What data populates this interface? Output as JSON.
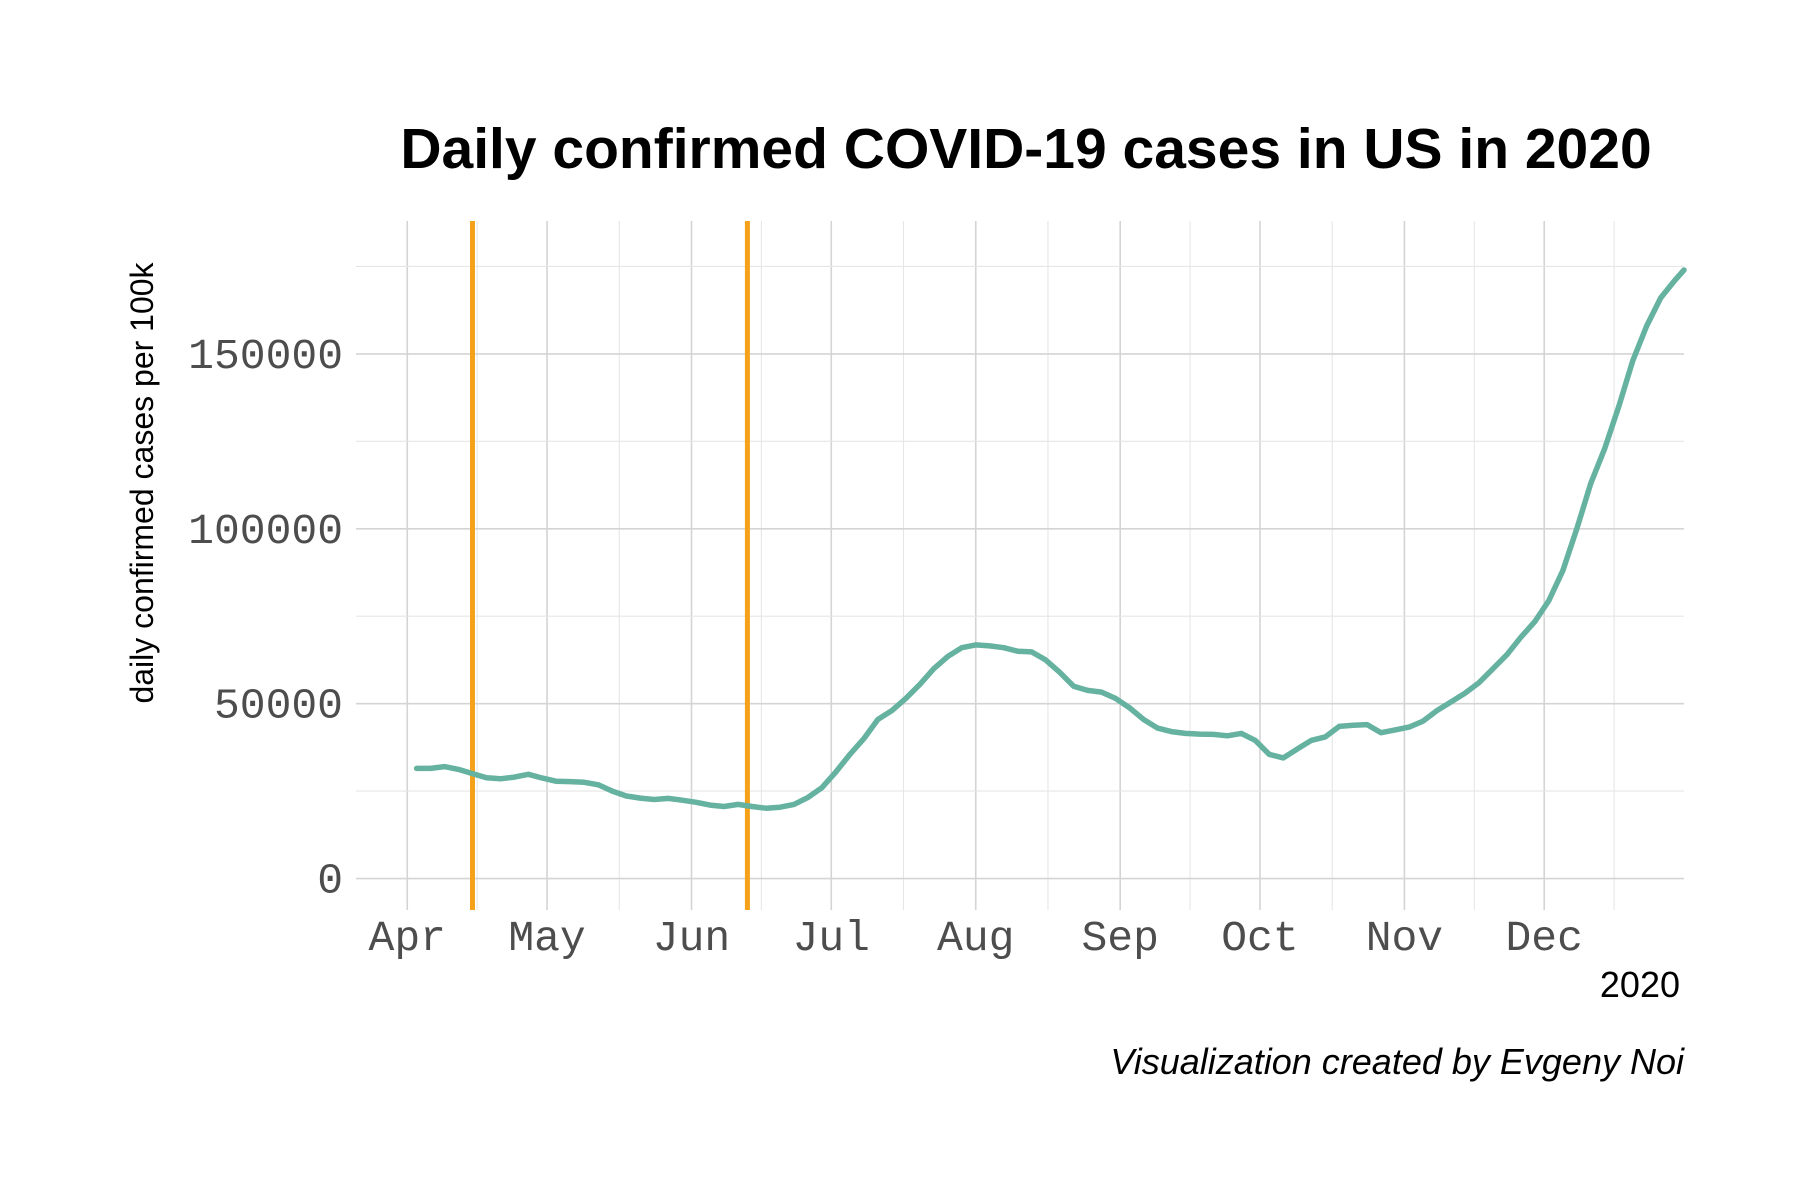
{
  "chart_data": {
    "type": "line",
    "title": "Daily confirmed COVID-19 cases in US in 2020",
    "ylabel": "daily confirmed cases per 100k",
    "xlabel": "2020",
    "caption": "Visualization created by Evgeny Noi",
    "x_ticks": [
      "Apr",
      "May",
      "Jun",
      "Jul",
      "Aug",
      "Sep",
      "Oct",
      "Nov",
      "Dec"
    ],
    "x_tick_dates": [
      "2020-04-01",
      "2020-05-01",
      "2020-06-01",
      "2020-07-01",
      "2020-08-01",
      "2020-09-01",
      "2020-10-01",
      "2020-11-01",
      "2020-12-01"
    ],
    "xlim": [
      "2020-03-21",
      "2020-12-31"
    ],
    "y_ticks": [
      0,
      50000,
      100000,
      150000
    ],
    "y_tick_labels": [
      "0",
      "50000",
      "100000",
      "150000"
    ],
    "ylim": [
      -9000,
      188000
    ],
    "grid": true,
    "series": [
      {
        "color": "#66b2a0",
        "points": [
          [
            "2020-04-03",
            31500
          ],
          [
            "2020-04-06",
            31500
          ],
          [
            "2020-04-09",
            32000
          ],
          [
            "2020-04-12",
            31200
          ],
          [
            "2020-04-15",
            30000
          ],
          [
            "2020-04-18",
            28800
          ],
          [
            "2020-04-21",
            28500
          ],
          [
            "2020-04-24",
            29000
          ],
          [
            "2020-04-27",
            29800
          ],
          [
            "2020-04-30",
            28700
          ],
          [
            "2020-05-03",
            27800
          ],
          [
            "2020-05-06",
            27700
          ],
          [
            "2020-05-09",
            27500
          ],
          [
            "2020-05-12",
            26800
          ],
          [
            "2020-05-15",
            25000
          ],
          [
            "2020-05-18",
            23600
          ],
          [
            "2020-05-21",
            23000
          ],
          [
            "2020-05-24",
            22600
          ],
          [
            "2020-05-27",
            22900
          ],
          [
            "2020-05-30",
            22400
          ],
          [
            "2020-06-02",
            21800
          ],
          [
            "2020-06-05",
            21000
          ],
          [
            "2020-06-08",
            20600
          ],
          [
            "2020-06-11",
            21200
          ],
          [
            "2020-06-14",
            20600
          ],
          [
            "2020-06-17",
            20100
          ],
          [
            "2020-06-20",
            20400
          ],
          [
            "2020-06-23",
            21200
          ],
          [
            "2020-06-26",
            23200
          ],
          [
            "2020-06-29",
            26000
          ],
          [
            "2020-07-02",
            30500
          ],
          [
            "2020-07-05",
            35500
          ],
          [
            "2020-07-08",
            40000
          ],
          [
            "2020-07-11",
            45500
          ],
          [
            "2020-07-14",
            48000
          ],
          [
            "2020-07-17",
            51500
          ],
          [
            "2020-07-20",
            55500
          ],
          [
            "2020-07-23",
            60000
          ],
          [
            "2020-07-26",
            63500
          ],
          [
            "2020-07-29",
            66000
          ],
          [
            "2020-08-01",
            66800
          ],
          [
            "2020-08-04",
            66500
          ],
          [
            "2020-08-07",
            66000
          ],
          [
            "2020-08-10",
            65000
          ],
          [
            "2020-08-13",
            64800
          ],
          [
            "2020-08-16",
            62500
          ],
          [
            "2020-08-19",
            59000
          ],
          [
            "2020-08-22",
            55000
          ],
          [
            "2020-08-25",
            53800
          ],
          [
            "2020-08-28",
            53300
          ],
          [
            "2020-08-31",
            51500
          ],
          [
            "2020-09-03",
            48800
          ],
          [
            "2020-09-06",
            45500
          ],
          [
            "2020-09-09",
            43000
          ],
          [
            "2020-09-12",
            42000
          ],
          [
            "2020-09-15",
            41500
          ],
          [
            "2020-09-18",
            41300
          ],
          [
            "2020-09-21",
            41200
          ],
          [
            "2020-09-24",
            40800
          ],
          [
            "2020-09-27",
            41500
          ],
          [
            "2020-09-30",
            39500
          ],
          [
            "2020-10-03",
            35500
          ],
          [
            "2020-10-06",
            34500
          ],
          [
            "2020-10-09",
            37000
          ],
          [
            "2020-10-12",
            39500
          ],
          [
            "2020-10-15",
            40500
          ],
          [
            "2020-10-18",
            43500
          ],
          [
            "2020-10-21",
            43800
          ],
          [
            "2020-10-24",
            44000
          ],
          [
            "2020-10-27",
            41700
          ],
          [
            "2020-10-30",
            42500
          ],
          [
            "2020-11-02",
            43300
          ],
          [
            "2020-11-05",
            45000
          ],
          [
            "2020-11-08",
            48000
          ],
          [
            "2020-11-11",
            50500
          ],
          [
            "2020-11-14",
            53000
          ],
          [
            "2020-11-17",
            56000
          ],
          [
            "2020-11-20",
            60000
          ],
          [
            "2020-11-23",
            64000
          ],
          [
            "2020-11-26",
            69000
          ],
          [
            "2020-11-29",
            73500
          ],
          [
            "2020-12-02",
            79500
          ],
          [
            "2020-12-05",
            88000
          ],
          [
            "2020-12-08",
            100000
          ],
          [
            "2020-12-11",
            113000
          ],
          [
            "2020-12-14",
            123000
          ],
          [
            "2020-12-17",
            135000
          ],
          [
            "2020-12-20",
            148000
          ],
          [
            "2020-12-23",
            158000
          ],
          [
            "2020-12-26",
            166000
          ],
          [
            "2020-12-29",
            171000
          ],
          [
            "2020-12-31",
            174000
          ]
        ]
      }
    ],
    "vlines": [
      {
        "x": "2020-04-15",
        "color": "#f5a21a"
      },
      {
        "x": "2020-06-13",
        "color": "#f5a21a"
      }
    ]
  }
}
